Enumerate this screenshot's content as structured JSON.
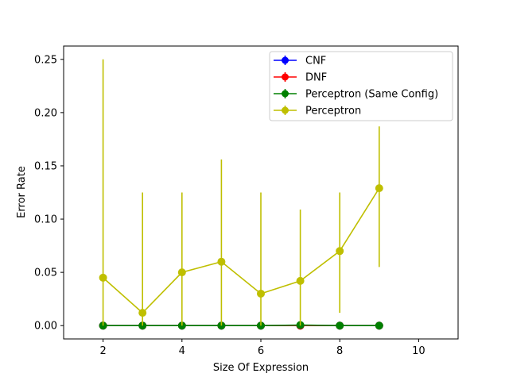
{
  "chart_data": {
    "type": "line",
    "title": "",
    "xlabel": "Size Of Expression",
    "ylabel": "Error Rate",
    "xlim": [
      1,
      11
    ],
    "ylim": [
      -0.0125,
      0.2625
    ],
    "xticks": [
      2,
      4,
      6,
      8,
      10
    ],
    "xtick_labels": [
      "2",
      "4",
      "6",
      "8",
      "10"
    ],
    "yticks": [
      0.0,
      0.05,
      0.1,
      0.15,
      0.2,
      0.25
    ],
    "ytick_labels": [
      "0.00",
      "0.05",
      "0.10",
      "0.15",
      "0.20",
      "0.25"
    ],
    "grid": false,
    "legend_position": "top-right",
    "x": [
      2,
      3,
      4,
      5,
      6,
      7,
      8,
      9
    ],
    "series": [
      {
        "name": "CNF",
        "color": "#0000ff",
        "values": [
          0,
          0,
          0,
          0,
          0,
          0,
          0,
          0
        ],
        "err_low": [
          0,
          0,
          0,
          0,
          0,
          0,
          0,
          0
        ],
        "err_high": [
          0,
          0,
          0,
          0,
          0,
          0,
          0,
          0
        ]
      },
      {
        "name": "DNF",
        "color": "#ff0000",
        "values": [
          0,
          0,
          0,
          0,
          0,
          0,
          0,
          0
        ],
        "err_low": [
          0,
          0,
          0,
          0,
          0,
          0,
          0,
          0
        ],
        "err_high": [
          0,
          0,
          0,
          0,
          0,
          0,
          0,
          0
        ]
      },
      {
        "name": "Perceptron (Same Config)",
        "color": "#008000",
        "values": [
          0,
          0,
          0,
          0,
          0,
          0.0005,
          0,
          0
        ],
        "err_low": [
          0,
          0,
          0,
          0,
          0,
          0,
          0,
          0
        ],
        "err_high": [
          0,
          0,
          0,
          0,
          0,
          0.001,
          0,
          0
        ]
      },
      {
        "name": "Perceptron",
        "color": "#bfbf00",
        "values": [
          0.045,
          0.012,
          0.05,
          0.06,
          0.03,
          0.042,
          0.07,
          0.129
        ],
        "err_low": [
          0,
          0,
          0,
          0,
          0,
          0,
          0.012,
          0.055
        ],
        "err_high": [
          0.25,
          0.125,
          0.125,
          0.156,
          0.125,
          0.109,
          0.125,
          0.187
        ]
      }
    ]
  }
}
